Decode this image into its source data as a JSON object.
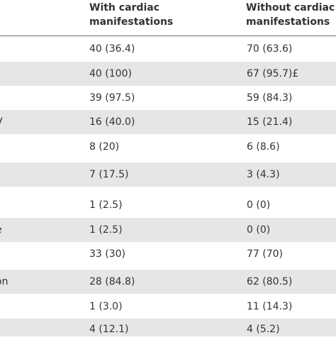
{
  "header": {
    "col1": [
      "With cardiac",
      "manifestations"
    ],
    "col2": [
      "Without cardiac",
      "manifestations"
    ]
  },
  "rows": [
    {
      "label": "",
      "with": "40 (36.4)",
      "without": "70 (63.6)"
    },
    {
      "label": "",
      "with": "40 (100)",
      "without": "67 (95.7)£"
    },
    {
      "label": "",
      "with": "39 (97.5)",
      "without": "59 (84.3)"
    },
    {
      "label": "V",
      "with": "16 (40.0)",
      "without": "15 (21.4)"
    },
    {
      "label": "",
      "with": "8 (20)",
      "without": "6 (8.6)"
    },
    {
      "label": "",
      "with": "7 (17.5)",
      "without": "3 (4.3)"
    },
    {
      "label": "",
      "with": "1 (2.5)",
      "without": "0 (0)"
    },
    {
      "label": "e",
      "with": "1 (2.5)",
      "without": "0 (0)"
    },
    {
      "label": "",
      "with": "33 (30)",
      "without": "77 (70)"
    },
    {
      "label": "on",
      "with": "28 (84.8)",
      "without": "62 (80.5)"
    },
    {
      "label": "",
      "with": "1 (3.0)",
      "without": "11 (14.3)"
    },
    {
      "label": "",
      "with": "4 (12.1)",
      "without": "4 (5.2)"
    }
  ]
}
